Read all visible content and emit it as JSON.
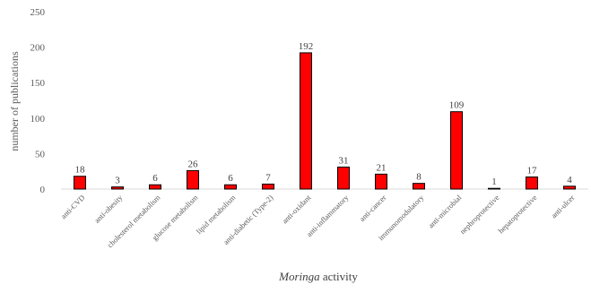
{
  "chart_data": {
    "type": "bar",
    "title": "",
    "xlabel": "Moringa activity",
    "xlabel_italic_part": "Moringa",
    "xlabel_rest": " activity",
    "ylabel": "number of publications",
    "ylim": [
      0,
      250
    ],
    "yticks": [
      0,
      50,
      100,
      150,
      200,
      250
    ],
    "categories": [
      "anti-CVD",
      "anti-obesity",
      "cholesterol metabolism",
      "glucose metabolism",
      "lipid metabolism",
      "anti-diabetic (Type-2)",
      "anti-oxidant",
      "anti-inflammatory",
      "anti-cancer",
      "immunomodulatory",
      "anti-microbial",
      "nephroprotective",
      "hepatoprotective",
      "anti-ulcer"
    ],
    "values": [
      18,
      3,
      6,
      26,
      6,
      7,
      192,
      31,
      21,
      8,
      109,
      1,
      17,
      4
    ],
    "bar_color": "#ff0000",
    "bar_edge_color": "#000000",
    "grid": false,
    "legend": "none"
  }
}
